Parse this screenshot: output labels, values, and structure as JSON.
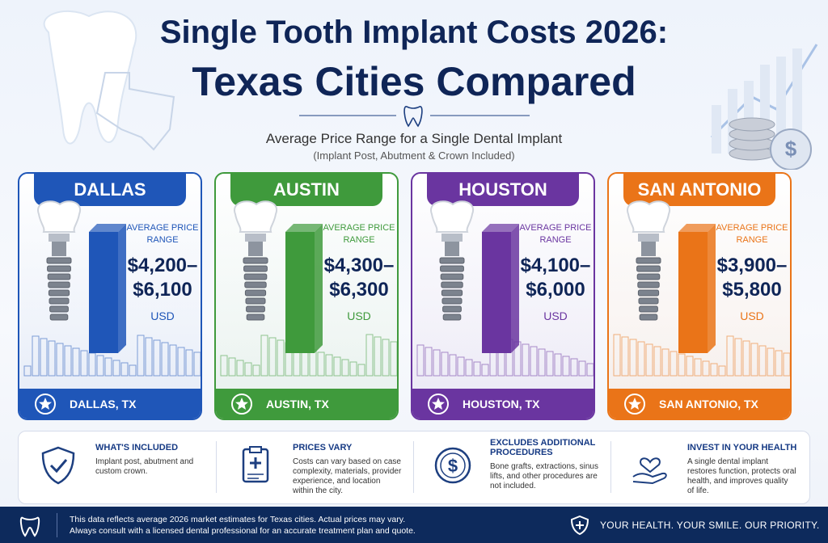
{
  "header": {
    "title_line1": "Single Tooth Implant Costs 2026:",
    "title_line2": "Texas Cities Compared",
    "subtitle": "Average Price Range for a Single Dental Implant",
    "note": "(Implant Post, Abutment & Crown Included)"
  },
  "cities": [
    {
      "name": "DALLAS",
      "color": "#1f56b8",
      "label": "AVERAGE PRICE RANGE",
      "price_low": "$4,200–",
      "price_high": "$6,100",
      "currency": "USD",
      "footer": "DALLAS, TX"
    },
    {
      "name": "AUSTIN",
      "color": "#3f9a3c",
      "label": "AVERAGE PRICE RANGE",
      "price_low": "$4,300–",
      "price_high": "$6,300",
      "currency": "USD",
      "footer": "AUSTIN, TX"
    },
    {
      "name": "HOUSTON",
      "color": "#6a35a0",
      "label": "AVERAGE PRICE RANGE",
      "price_low": "$4,100–",
      "price_high": "$6,000",
      "currency": "USD",
      "footer": "HOUSTON, TX"
    },
    {
      "name": "SAN ANTONIO",
      "color": "#ea7418",
      "label": "AVERAGE PRICE RANGE",
      "price_low": "$3,900–",
      "price_high": "$5,800",
      "currency": "USD",
      "footer": "SAN ANTONIO, TX"
    }
  ],
  "info": [
    {
      "title": "WHAT'S INCLUDED",
      "text": "Implant post, abutment and custom crown."
    },
    {
      "title": "PRICES VARY",
      "text": "Costs can vary based on case complexity, materials, provider experience, and location within the city."
    },
    {
      "title": "EXCLUDES ADDITIONAL PROCEDURES",
      "text": "Bone grafts, extractions, sinus lifts, and other procedures are not included."
    },
    {
      "title": "INVEST IN YOUR HEALTH",
      "text": "A single dental implant restores function, protects oral health, and improves quality of life."
    }
  ],
  "footer": {
    "disclaimer_line1": "This data reflects average 2026 market estimates for Texas cities. Actual prices may vary.",
    "disclaimer_line2": "Always consult with a licensed dental professional for an accurate treatment plan and quote.",
    "slogan": "YOUR HEALTH. YOUR SMILE. OUR PRIORITY."
  }
}
